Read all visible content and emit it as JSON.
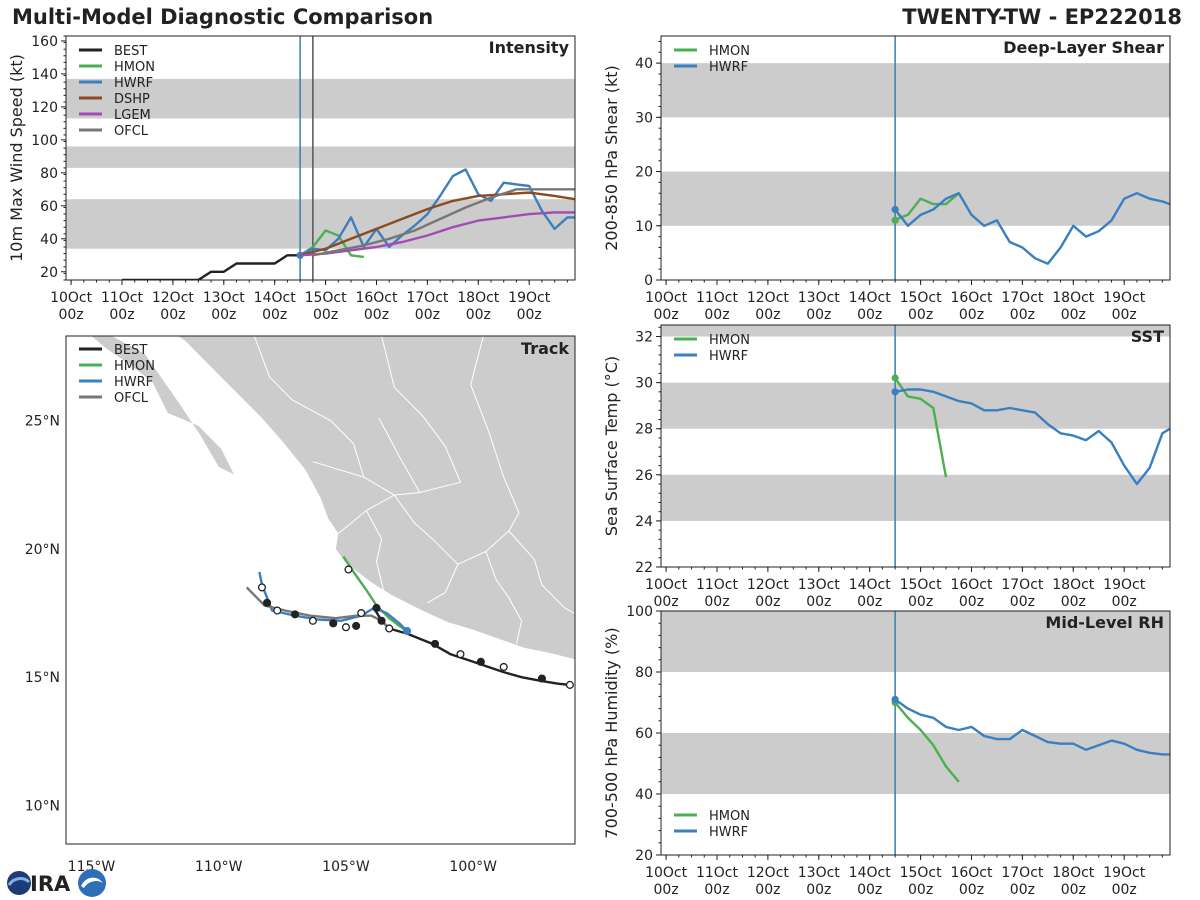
{
  "header": {
    "title": "Multi-Model Diagnostic Comparison",
    "storm_id": "TWENTY-TW - EP222018"
  },
  "colors": {
    "BEST": "#222222",
    "HMON": "#4caf50",
    "HWRF": "#3a7fc0",
    "DSHP": "#8b4a1f",
    "LGEM": "#a24cb2",
    "OFCL": "#777777",
    "band": "#cccccc",
    "land": "#cccccc",
    "border": "#ffffff",
    "init_line": "#3a7fa8",
    "ofcl_line": "#555555"
  },
  "time_ticks": {
    "dates": [
      "10Oct",
      "11Oct",
      "12Oct",
      "13Oct",
      "14Oct",
      "15Oct",
      "16Oct",
      "17Oct",
      "18Oct",
      "19Oct"
    ],
    "hours": [
      "00z",
      "00z",
      "00z",
      "00z",
      "00z",
      "00z",
      "00z",
      "00z",
      "00z",
      "00z"
    ]
  },
  "chart_data": [
    {
      "id": "intensity",
      "type": "line",
      "title": "Intensity",
      "ylabel": "10m Max Wind Speed (kt)",
      "xlabel": "",
      "ylim": [
        15,
        163
      ],
      "xlim": [
        -0.1,
        9.9
      ],
      "yticks": [
        20,
        40,
        60,
        80,
        100,
        120,
        140,
        160
      ],
      "bands": [
        [
          34,
          64
        ],
        [
          83,
          96
        ],
        [
          113,
          137
        ]
      ],
      "vlines": [
        4.5,
        4.75
      ],
      "legend_position": "top-left",
      "legend": [
        "BEST",
        "HMON",
        "HWRF",
        "DSHP",
        "LGEM",
        "OFCL"
      ],
      "series": [
        {
          "name": "BEST",
          "x": [
            1.0,
            1.5,
            2.0,
            2.25,
            2.5,
            2.75,
            3.0,
            3.25,
            3.5,
            3.75,
            4.0,
            4.25,
            4.5
          ],
          "y": [
            15,
            15,
            15,
            15,
            15,
            20,
            20,
            25,
            25,
            25,
            25,
            30,
            30
          ]
        },
        {
          "name": "HMON",
          "x": [
            4.5,
            4.75,
            5.0,
            5.25,
            5.5,
            5.75
          ],
          "y": [
            30,
            35,
            45,
            42,
            30,
            29
          ]
        },
        {
          "name": "HWRF",
          "x": [
            4.5,
            4.75,
            5.0,
            5.25,
            5.5,
            5.75,
            6.0,
            6.25,
            6.5,
            6.75,
            7.0,
            7.25,
            7.5,
            7.75,
            8.0,
            8.25,
            8.5,
            8.75,
            9.0,
            9.25,
            9.5,
            9.75,
            9.9
          ],
          "y": [
            30,
            34,
            33,
            40,
            53,
            35,
            46,
            35,
            42,
            48,
            55,
            66,
            78,
            82,
            67,
            63,
            74,
            73,
            72,
            57,
            46,
            53,
            53
          ]
        },
        {
          "name": "DSHP",
          "x": [
            4.5,
            5.0,
            5.5,
            6.0,
            6.5,
            7.0,
            7.5,
            8.0,
            8.5,
            9.0,
            9.5,
            9.9
          ],
          "y": [
            30,
            34,
            40,
            46,
            52,
            58,
            63,
            66,
            67,
            68,
            66,
            64
          ]
        },
        {
          "name": "LGEM",
          "x": [
            4.5,
            5.0,
            5.5,
            6.0,
            6.5,
            7.0,
            7.5,
            8.0,
            8.5,
            9.0,
            9.5,
            9.9
          ],
          "y": [
            30,
            31,
            33,
            35,
            38,
            42,
            47,
            51,
            53,
            55,
            56,
            56
          ]
        },
        {
          "name": "OFCL",
          "x": [
            4.75,
            5.25,
            5.75,
            6.25,
            6.75,
            7.25,
            7.75,
            8.25,
            8.75,
            9.25,
            9.9
          ],
          "y": [
            30,
            33,
            36,
            40,
            45,
            52,
            59,
            65,
            70,
            70,
            70
          ]
        }
      ]
    },
    {
      "id": "shear",
      "type": "line",
      "title": "Deep-Layer Shear",
      "ylabel": "200-850 hPa Shear (kt)",
      "ylim": [
        0,
        45
      ],
      "xlim": [
        -0.1,
        9.9
      ],
      "yticks": [
        0,
        10,
        20,
        30,
        40
      ],
      "bands": [
        [
          10,
          20
        ],
        [
          30,
          40
        ]
      ],
      "vlines": [
        4.5
      ],
      "legend_position": "top-left",
      "legend": [
        "HMON",
        "HWRF"
      ],
      "series": [
        {
          "name": "HMON",
          "x": [
            4.5,
            4.6,
            4.75,
            5.0,
            5.25,
            5.5,
            5.75
          ],
          "y": [
            11,
            11.5,
            12,
            15,
            14,
            14,
            16
          ]
        },
        {
          "name": "HWRF",
          "x": [
            4.5,
            4.75,
            5.0,
            5.25,
            5.5,
            5.75,
            6.0,
            6.25,
            6.5,
            6.75,
            7.0,
            7.25,
            7.5,
            7.75,
            8.0,
            8.25,
            8.5,
            8.75,
            9.0,
            9.25,
            9.5,
            9.75,
            9.9
          ],
          "y": [
            13,
            10,
            12,
            13,
            15,
            16,
            12,
            10,
            11,
            7,
            6,
            4,
            3,
            6,
            10,
            8,
            9,
            11,
            15,
            16,
            15,
            14.5,
            14
          ]
        }
      ]
    },
    {
      "id": "sst",
      "type": "line",
      "title": "SST",
      "ylabel": "Sea Surface Temp (°C)",
      "ylim": [
        22,
        32.5
      ],
      "xlim": [
        -0.1,
        9.9
      ],
      "yticks": [
        22,
        24,
        26,
        28,
        30,
        32
      ],
      "bands": [
        [
          24,
          26
        ],
        [
          28,
          30
        ],
        [
          32,
          32.5
        ]
      ],
      "vlines": [
        4.5
      ],
      "legend_position": "top-left",
      "legend": [
        "HMON",
        "HWRF"
      ],
      "series": [
        {
          "name": "HMON",
          "x": [
            4.5,
            4.75,
            5.0,
            5.25,
            5.5
          ],
          "y": [
            30.2,
            29.4,
            29.3,
            28.9,
            25.9
          ]
        },
        {
          "name": "HWRF",
          "x": [
            4.5,
            4.75,
            5.0,
            5.25,
            5.5,
            5.75,
            6.0,
            6.25,
            6.5,
            6.75,
            7.0,
            7.25,
            7.5,
            7.75,
            8.0,
            8.25,
            8.5,
            8.75,
            9.0,
            9.25,
            9.5,
            9.75,
            9.9
          ],
          "y": [
            29.6,
            29.7,
            29.7,
            29.6,
            29.4,
            29.2,
            29.1,
            28.8,
            28.8,
            28.9,
            28.8,
            28.7,
            28.2,
            27.8,
            27.7,
            27.5,
            27.9,
            27.4,
            26.4,
            25.6,
            26.3,
            27.8,
            28.0
          ]
        }
      ]
    },
    {
      "id": "rh",
      "type": "line",
      "title": "Mid-Level RH",
      "ylabel": "700-500 hPa Humidity (%)",
      "ylim": [
        20,
        100
      ],
      "xlim": [
        -0.1,
        9.9
      ],
      "yticks": [
        20,
        40,
        60,
        80,
        100
      ],
      "bands": [
        [
          40,
          60
        ],
        [
          80,
          100
        ]
      ],
      "vlines": [
        4.5
      ],
      "legend_position": "bottom-left",
      "legend": [
        "HMON",
        "HWRF"
      ],
      "series": [
        {
          "name": "HMON",
          "x": [
            4.5,
            4.75,
            5.0,
            5.25,
            5.5,
            5.75
          ],
          "y": [
            70,
            65,
            61,
            56,
            49,
            44
          ]
        },
        {
          "name": "HWRF",
          "x": [
            4.5,
            4.75,
            5.0,
            5.25,
            5.5,
            5.75,
            6.0,
            6.25,
            6.5,
            6.75,
            7.0,
            7.25,
            7.5,
            7.75,
            8.0,
            8.25,
            8.5,
            8.75,
            9.0,
            9.25,
            9.5,
            9.75,
            9.9
          ],
          "y": [
            71,
            68,
            66,
            65,
            62,
            61,
            62,
            59,
            58,
            58,
            61,
            59,
            57,
            56.5,
            56.5,
            54.5,
            56,
            57.5,
            56.5,
            54.5,
            53.5,
            53,
            53
          ]
        }
      ]
    },
    {
      "id": "track",
      "type": "map",
      "title": "Track",
      "xlim": [
        -116,
        -96
      ],
      "ylim": [
        8.5,
        28.3
      ],
      "xticks": [
        -115,
        -110,
        -105,
        -100
      ],
      "xtick_labels": [
        "115°W",
        "110°W",
        "105°W",
        "100°W"
      ],
      "yticks": [
        10,
        15,
        20,
        25
      ],
      "ytick_labels": [
        "10°N",
        "15°N",
        "20°N",
        "25°N"
      ],
      "legend_position": "top-left",
      "legend": [
        "BEST",
        "HMON",
        "HWRF",
        "OFCL"
      ],
      "series": [
        {
          "name": "BEST",
          "lon": [
            -96.2,
            -96.7,
            -97.3,
            -98.1,
            -98.8,
            -99.4,
            -100.0,
            -100.9,
            -101.6,
            -102.6,
            -103.3,
            -103.6,
            -103.9
          ],
          "lat": [
            14.7,
            14.75,
            14.85,
            15.0,
            15.2,
            15.4,
            15.6,
            15.9,
            16.3,
            16.7,
            16.9,
            17.2,
            17.7
          ],
          "markers": [
            {
              "lon": -96.2,
              "lat": 14.7,
              "filled": false
            },
            {
              "lon": -97.3,
              "lat": 14.95,
              "filled": true
            },
            {
              "lon": -98.8,
              "lat": 15.4,
              "filled": false
            },
            {
              "lon": -99.7,
              "lat": 15.6,
              "filled": true
            },
            {
              "lon": -100.5,
              "lat": 15.9,
              "filled": false
            },
            {
              "lon": -101.5,
              "lat": 16.3,
              "filled": true
            },
            {
              "lon": -103.3,
              "lat": 16.9,
              "filled": false
            },
            {
              "lon": -103.8,
              "lat": 17.7,
              "filled": true
            }
          ]
        },
        {
          "name": "HMON",
          "lon": [
            -105.1,
            -104.7,
            -104.2,
            -103.8,
            -103.3,
            -102.9,
            -102.6
          ],
          "lat": [
            19.7,
            19.1,
            18.4,
            17.8,
            17.3,
            17.0,
            16.8
          ],
          "markers": [
            {
              "lon": -104.9,
              "lat": 19.2,
              "filled": false
            }
          ]
        },
        {
          "name": "HWRF",
          "lon": [
            -108.4,
            -108.3,
            -107.9,
            -107.0,
            -106.1,
            -105.2,
            -104.4,
            -103.9,
            -103.4,
            -102.9,
            -102.6
          ],
          "lat": [
            19.1,
            18.6,
            17.6,
            17.4,
            17.25,
            17.2,
            17.4,
            17.7,
            17.5,
            17.1,
            16.8
          ],
          "markers": [
            {
              "lon": -108.3,
              "lat": 18.5,
              "filled": false
            },
            {
              "lon": -108.1,
              "lat": 17.9,
              "filled": true
            },
            {
              "lon": -107.7,
              "lat": 17.6,
              "filled": false
            },
            {
              "lon": -107.0,
              "lat": 17.45,
              "filled": true
            },
            {
              "lon": -106.3,
              "lat": 17.2,
              "filled": false
            },
            {
              "lon": -105.5,
              "lat": 17.1,
              "filled": true
            },
            {
              "lon": -105.0,
              "lat": 16.95,
              "filled": false
            },
            {
              "lon": -104.6,
              "lat": 17.0,
              "filled": true
            },
            {
              "lon": -104.4,
              "lat": 17.5,
              "filled": false
            },
            {
              "lon": -102.6,
              "lat": 16.8,
              "filled": true
            }
          ]
        },
        {
          "name": "OFCL",
          "lon": [
            -108.9,
            -108.2,
            -107.4,
            -106.4,
            -105.4,
            -104.6,
            -104.0,
            -103.6,
            -103.3
          ],
          "lat": [
            18.5,
            17.8,
            17.6,
            17.4,
            17.3,
            17.4,
            17.4,
            17.2,
            16.9
          ],
          "markers": [
            {
              "lon": -103.6,
              "lat": 17.2,
              "filled": true
            }
          ]
        }
      ]
    }
  ]
}
